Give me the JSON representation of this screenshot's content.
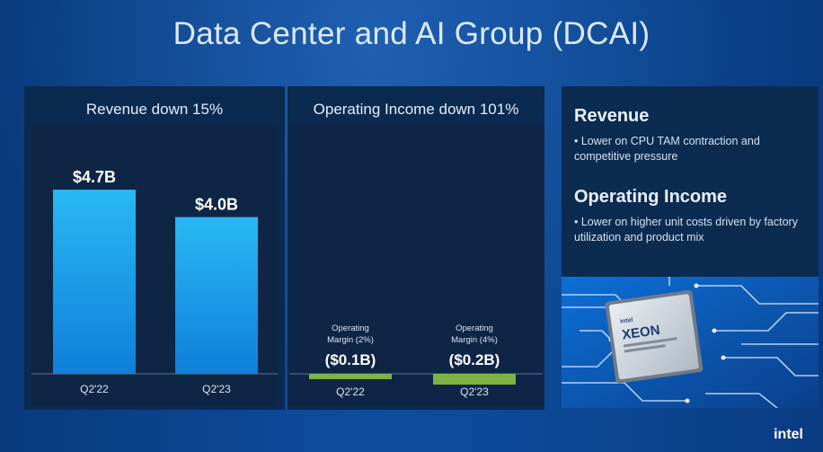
{
  "slide": {
    "title": "Data Center and AI Group (DCAI)",
    "logo": "intel"
  },
  "panels": {
    "revenue_title": "Revenue down 15%",
    "operating_income_title": "Operating Income down 101%"
  },
  "sidebar": {
    "revenue_heading": "Revenue",
    "revenue_bullet": "• Lower on CPU TAM contraction and competitive pressure",
    "oi_heading": "Operating Income",
    "oi_bullet": "• Lower on higher unit costs driven by factory utilization and product mix",
    "chip_brand": "intel",
    "chip_name": "XEON"
  },
  "chart_data": [
    {
      "type": "bar",
      "title": "Revenue down 15%",
      "categories": [
        "Q2'22",
        "Q2'23"
      ],
      "values": [
        4.7,
        4.0
      ],
      "data_labels": [
        "$4.7B",
        "$4.0B"
      ],
      "ylim": [
        0,
        5
      ],
      "colors": [
        "#1aa8ef",
        "#1aa8ef"
      ]
    },
    {
      "type": "bar",
      "title": "Operating Income down 101%",
      "categories": [
        "Q2'22",
        "Q2'23"
      ],
      "values": [
        -0.1,
        -0.2
      ],
      "data_labels": [
        "($0.1B)",
        "($0.2B)"
      ],
      "annotations": [
        "Operating Margin (2%)",
        "Operating Margin (4%)"
      ],
      "annotation_lines": [
        [
          "Operating",
          "Margin (2%)"
        ],
        [
          "Operating",
          "Margin (4%)"
        ]
      ],
      "colors": [
        "#7cb342",
        "#7cb342"
      ]
    }
  ]
}
